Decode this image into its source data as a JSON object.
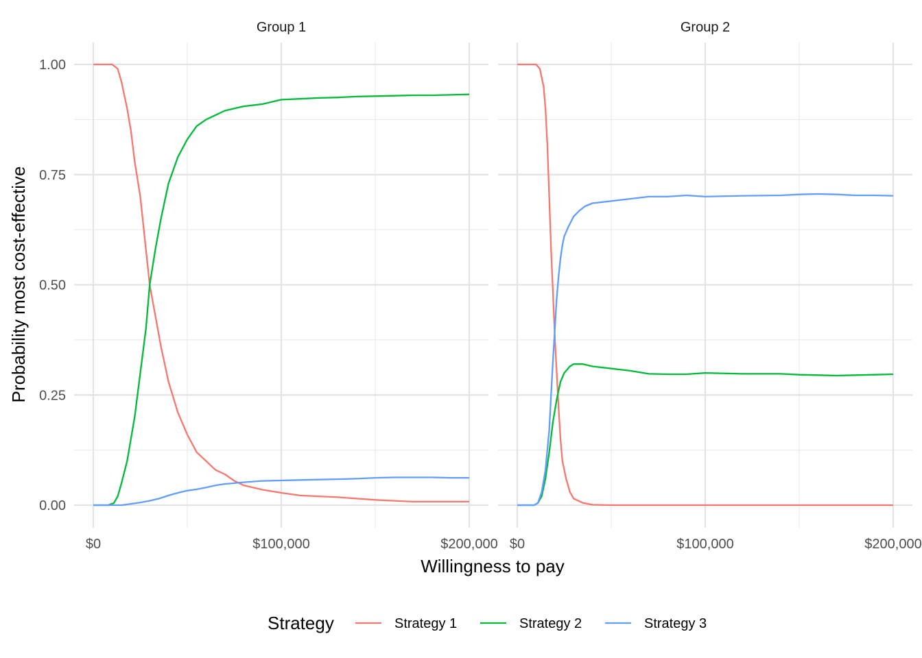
{
  "chart_data": {
    "type": "line",
    "xlabel": "Willingness to pay",
    "ylabel": "Probability most cost-effective",
    "xlim": [
      0,
      200000
    ],
    "ylim": [
      0,
      1
    ],
    "x_ticks": [
      0,
      100000,
      200000
    ],
    "x_tick_labels": [
      "$0",
      "$100,000",
      "$200,000"
    ],
    "y_ticks": [
      0,
      0.25,
      0.5,
      0.75,
      1
    ],
    "y_tick_labels": [
      "0.00",
      "0.25",
      "0.50",
      "0.75",
      "1.00"
    ],
    "grid": true,
    "legend": {
      "title": "Strategy",
      "position": "bottom",
      "entries": [
        {
          "name": "Strategy 1",
          "color": "#F8766D"
        },
        {
          "name": "Strategy 2",
          "color": "#00BA38"
        },
        {
          "name": "Strategy 3",
          "color": "#619CFF"
        }
      ]
    },
    "panels": [
      {
        "title": "Group 1",
        "series": [
          {
            "name": "Strategy 1",
            "color": "#F8766D",
            "points": [
              [
                0,
                1
              ],
              [
                10000,
                1
              ],
              [
                13000,
                0.99
              ],
              [
                15000,
                0.96
              ],
              [
                18000,
                0.9
              ],
              [
                20000,
                0.85
              ],
              [
                22000,
                0.78
              ],
              [
                25000,
                0.7
              ],
              [
                28000,
                0.58
              ],
              [
                30000,
                0.5
              ],
              [
                33000,
                0.43
              ],
              [
                36000,
                0.36
              ],
              [
                40000,
                0.28
              ],
              [
                45000,
                0.21
              ],
              [
                50000,
                0.16
              ],
              [
                55000,
                0.12
              ],
              [
                60000,
                0.1
              ],
              [
                65000,
                0.08
              ],
              [
                70000,
                0.07
              ],
              [
                75000,
                0.055
              ],
              [
                80000,
                0.045
              ],
              [
                90000,
                0.035
              ],
              [
                100000,
                0.028
              ],
              [
                110000,
                0.022
              ],
              [
                120000,
                0.02
              ],
              [
                130000,
                0.018
              ],
              [
                140000,
                0.015
              ],
              [
                150000,
                0.012
              ],
              [
                160000,
                0.01
              ],
              [
                170000,
                0.008
              ],
              [
                180000,
                0.008
              ],
              [
                190000,
                0.008
              ],
              [
                200000,
                0.008
              ]
            ]
          },
          {
            "name": "Strategy 2",
            "color": "#00BA38",
            "points": [
              [
                0,
                0
              ],
              [
                8000,
                0
              ],
              [
                11000,
                0.005
              ],
              [
                13000,
                0.02
              ],
              [
                15000,
                0.05
              ],
              [
                18000,
                0.1
              ],
              [
                20000,
                0.15
              ],
              [
                22000,
                0.2
              ],
              [
                25000,
                0.3
              ],
              [
                28000,
                0.4
              ],
              [
                30000,
                0.5
              ],
              [
                33000,
                0.58
              ],
              [
                36000,
                0.65
              ],
              [
                40000,
                0.73
              ],
              [
                45000,
                0.79
              ],
              [
                50000,
                0.83
              ],
              [
                55000,
                0.86
              ],
              [
                60000,
                0.875
              ],
              [
                65000,
                0.885
              ],
              [
                70000,
                0.895
              ],
              [
                75000,
                0.9
              ],
              [
                80000,
                0.905
              ],
              [
                90000,
                0.91
              ],
              [
                100000,
                0.92
              ],
              [
                110000,
                0.922
              ],
              [
                120000,
                0.924
              ],
              [
                130000,
                0.925
              ],
              [
                140000,
                0.927
              ],
              [
                150000,
                0.928
              ],
              [
                160000,
                0.929
              ],
              [
                170000,
                0.93
              ],
              [
                180000,
                0.93
              ],
              [
                190000,
                0.931
              ],
              [
                200000,
                0.932
              ]
            ]
          },
          {
            "name": "Strategy 3",
            "color": "#619CFF",
            "points": [
              [
                0,
                0
              ],
              [
                15000,
                0
              ],
              [
                20000,
                0.003
              ],
              [
                25000,
                0.006
              ],
              [
                30000,
                0.01
              ],
              [
                35000,
                0.015
              ],
              [
                40000,
                0.022
              ],
              [
                45000,
                0.028
              ],
              [
                50000,
                0.033
              ],
              [
                55000,
                0.036
              ],
              [
                60000,
                0.04
              ],
              [
                65000,
                0.045
              ],
              [
                70000,
                0.048
              ],
              [
                75000,
                0.05
              ],
              [
                80000,
                0.052
              ],
              [
                90000,
                0.055
              ],
              [
                100000,
                0.056
              ],
              [
                110000,
                0.057
              ],
              [
                120000,
                0.058
              ],
              [
                130000,
                0.059
              ],
              [
                140000,
                0.06
              ],
              [
                150000,
                0.062
              ],
              [
                160000,
                0.063
              ],
              [
                170000,
                0.063
              ],
              [
                180000,
                0.063
              ],
              [
                190000,
                0.062
              ],
              [
                200000,
                0.062
              ]
            ]
          }
        ]
      },
      {
        "title": "Group 2",
        "series": [
          {
            "name": "Strategy 1",
            "color": "#F8766D",
            "points": [
              [
                0,
                1
              ],
              [
                9000,
                1
              ],
              [
                10000,
                1
              ],
              [
                12000,
                0.99
              ],
              [
                14000,
                0.95
              ],
              [
                15000,
                0.9
              ],
              [
                16000,
                0.82
              ],
              [
                17000,
                0.7
              ],
              [
                18000,
                0.58
              ],
              [
                19000,
                0.48
              ],
              [
                20000,
                0.38
              ],
              [
                21000,
                0.3
              ],
              [
                22000,
                0.22
              ],
              [
                23000,
                0.15
              ],
              [
                24000,
                0.1
              ],
              [
                26000,
                0.06
              ],
              [
                28000,
                0.03
              ],
              [
                30000,
                0.015
              ],
              [
                35000,
                0.005
              ],
              [
                40000,
                0.001
              ],
              [
                50000,
                0
              ],
              [
                100000,
                0
              ],
              [
                150000,
                0
              ],
              [
                200000,
                0
              ]
            ]
          },
          {
            "name": "Strategy 2",
            "color": "#00BA38",
            "points": [
              [
                0,
                0
              ],
              [
                9000,
                0
              ],
              [
                11000,
                0.005
              ],
              [
                13000,
                0.02
              ],
              [
                15000,
                0.06
              ],
              [
                17000,
                0.12
              ],
              [
                19000,
                0.19
              ],
              [
                21000,
                0.24
              ],
              [
                23000,
                0.28
              ],
              [
                25000,
                0.3
              ],
              [
                28000,
                0.315
              ],
              [
                30000,
                0.32
              ],
              [
                35000,
                0.32
              ],
              [
                40000,
                0.315
              ],
              [
                50000,
                0.31
              ],
              [
                60000,
                0.305
              ],
              [
                70000,
                0.298
              ],
              [
                80000,
                0.297
              ],
              [
                90000,
                0.297
              ],
              [
                100000,
                0.3
              ],
              [
                120000,
                0.298
              ],
              [
                140000,
                0.298
              ],
              [
                150000,
                0.296
              ],
              [
                160000,
                0.295
              ],
              [
                170000,
                0.294
              ],
              [
                180000,
                0.295
              ],
              [
                190000,
                0.296
              ],
              [
                200000,
                0.297
              ]
            ]
          },
          {
            "name": "Strategy 3",
            "color": "#619CFF",
            "points": [
              [
                0,
                0
              ],
              [
                9000,
                0
              ],
              [
                11000,
                0.005
              ],
              [
                13000,
                0.03
              ],
              [
                15000,
                0.08
              ],
              [
                17000,
                0.17
              ],
              [
                18000,
                0.25
              ],
              [
                19000,
                0.33
              ],
              [
                20000,
                0.4
              ],
              [
                21000,
                0.47
              ],
              [
                22000,
                0.52
              ],
              [
                23000,
                0.56
              ],
              [
                24000,
                0.59
              ],
              [
                25000,
                0.61
              ],
              [
                27000,
                0.63
              ],
              [
                30000,
                0.655
              ],
              [
                33000,
                0.668
              ],
              [
                36000,
                0.678
              ],
              [
                40000,
                0.685
              ],
              [
                50000,
                0.69
              ],
              [
                60000,
                0.695
              ],
              [
                70000,
                0.7
              ],
              [
                80000,
                0.7
              ],
              [
                90000,
                0.703
              ],
              [
                100000,
                0.7
              ],
              [
                120000,
                0.702
              ],
              [
                140000,
                0.703
              ],
              [
                150000,
                0.705
              ],
              [
                160000,
                0.706
              ],
              [
                170000,
                0.705
              ],
              [
                180000,
                0.703
              ],
              [
                190000,
                0.703
              ],
              [
                200000,
                0.702
              ]
            ]
          }
        ]
      }
    ]
  }
}
